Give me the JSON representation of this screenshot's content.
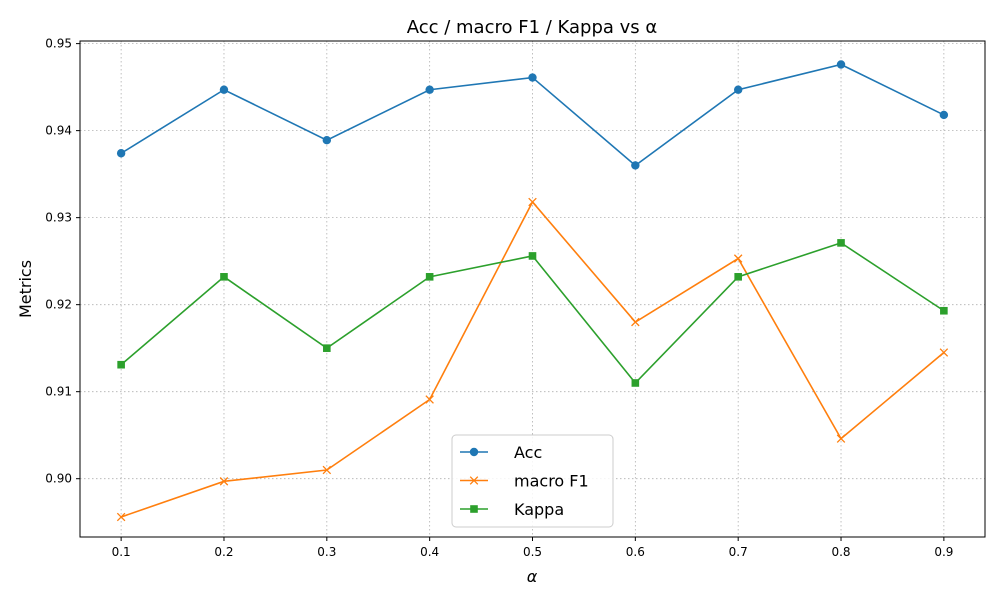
{
  "chart_data": {
    "type": "line",
    "title": "Acc / macro F1 / Kappa vs α",
    "xlabel": "α",
    "ylabel": "Metrics",
    "x": [
      0.1,
      0.2,
      0.3,
      0.4,
      0.5,
      0.6,
      0.7,
      0.8,
      0.9
    ],
    "xticks": [
      "0.1",
      "0.2",
      "0.3",
      "0.4",
      "0.5",
      "0.6",
      "0.7",
      "0.8",
      "0.9"
    ],
    "yticks": [
      "0.90",
      "0.91",
      "0.92",
      "0.93",
      "0.94",
      "0.95"
    ],
    "ylim": [
      0.8933,
      0.9503
    ],
    "xlim": [
      0.06,
      0.94
    ],
    "grid": true,
    "legend_position": "lower-center",
    "series": [
      {
        "name": "Acc",
        "color": "#1f77b4",
        "marker": "circle",
        "values": [
          0.9374,
          0.9447,
          0.9389,
          0.9447,
          0.9461,
          0.936,
          0.9447,
          0.9476,
          0.9418
        ]
      },
      {
        "name": "macro F1",
        "color": "#ff7f0e",
        "marker": "x",
        "values": [
          0.8956,
          0.8997,
          0.901,
          0.9091,
          0.9318,
          0.918,
          0.9253,
          0.9046,
          0.9145
        ]
      },
      {
        "name": "Kappa",
        "color": "#2ca02c",
        "marker": "square",
        "values": [
          0.9131,
          0.9232,
          0.915,
          0.9232,
          0.9256,
          0.911,
          0.9232,
          0.9271,
          0.9193
        ]
      }
    ]
  }
}
